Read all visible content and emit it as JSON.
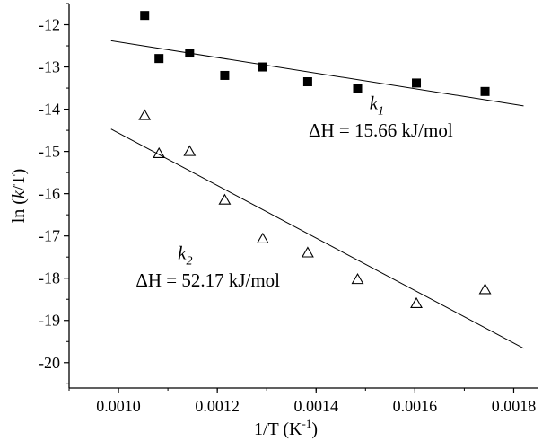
{
  "chart_data": {
    "type": "scatter",
    "title": "",
    "xlabel": "1/T (K⁻¹)",
    "xlabel_parts": {
      "main": "1/T (K",
      "sup": "-1",
      "close": ")"
    },
    "ylabel": "ln (k/T)",
    "ylabel_parts": {
      "prefix": "ln (",
      "italic": "k",
      "suffix": "/T)"
    },
    "xlim": [
      0.0009,
      0.00185
    ],
    "ylim": [
      -20.6,
      -11.5
    ],
    "x_ticks": [
      0.001,
      0.0012,
      0.0014,
      0.0016,
      0.0018
    ],
    "x_tick_labels": [
      "0.0010",
      "0.0012",
      "0.0014",
      "0.0016",
      "0.0018"
    ],
    "y_ticks": [
      -12,
      -13,
      -14,
      -15,
      -16,
      -17,
      -18,
      -19,
      -20
    ],
    "y_tick_labels": [
      "-12",
      "-13",
      "-14",
      "-15",
      "-16",
      "-17",
      "-18",
      "-19",
      "-20"
    ],
    "grid": false,
    "series": [
      {
        "name": "k1",
        "marker": "filled-square",
        "color": "#000000",
        "points": [
          {
            "x": 0.001053,
            "y": -11.78
          },
          {
            "x": 0.001082,
            "y": -12.8
          },
          {
            "x": 0.001144,
            "y": -12.67
          },
          {
            "x": 0.001215,
            "y": -13.2
          },
          {
            "x": 0.001292,
            "y": -13.0
          },
          {
            "x": 0.001383,
            "y": -13.35
          },
          {
            "x": 0.001484,
            "y": -13.5
          },
          {
            "x": 0.001603,
            "y": -13.38
          },
          {
            "x": 0.001742,
            "y": -13.58
          }
        ],
        "fit_line": [
          {
            "x": 0.000985,
            "y": -12.38
          },
          {
            "x": 0.00182,
            "y": -13.92
          }
        ]
      },
      {
        "name": "k2",
        "marker": "open-triangle",
        "color": "#000000",
        "points": [
          {
            "x": 0.001053,
            "y": -14.15
          },
          {
            "x": 0.001082,
            "y": -15.05
          },
          {
            "x": 0.001144,
            "y": -15.0
          },
          {
            "x": 0.001215,
            "y": -16.15
          },
          {
            "x": 0.001292,
            "y": -17.07
          },
          {
            "x": 0.001383,
            "y": -17.4
          },
          {
            "x": 0.001484,
            "y": -18.03
          },
          {
            "x": 0.001603,
            "y": -18.6
          },
          {
            "x": 0.001742,
            "y": -18.27
          }
        ],
        "fit_line": [
          {
            "x": 0.000985,
            "y": -14.47
          },
          {
            "x": 0.00182,
            "y": -19.66
          }
        ]
      }
    ],
    "annotations": [
      {
        "id": "k1",
        "symbol": "k",
        "sub": "1",
        "text": "ΔH = 15.66 kJ/mol",
        "symbol_at": {
          "x": 0.001508,
          "y": -14.0
        },
        "text_at": {
          "x": 0.001385,
          "y": -14.65
        }
      },
      {
        "id": "k2",
        "symbol": "k",
        "sub": "2",
        "text": "ΔH = 52.17 kJ/mol",
        "symbol_at": {
          "x": 0.00112,
          "y": -17.55
        },
        "text_at": {
          "x": 0.001035,
          "y": -18.2
        }
      }
    ]
  }
}
